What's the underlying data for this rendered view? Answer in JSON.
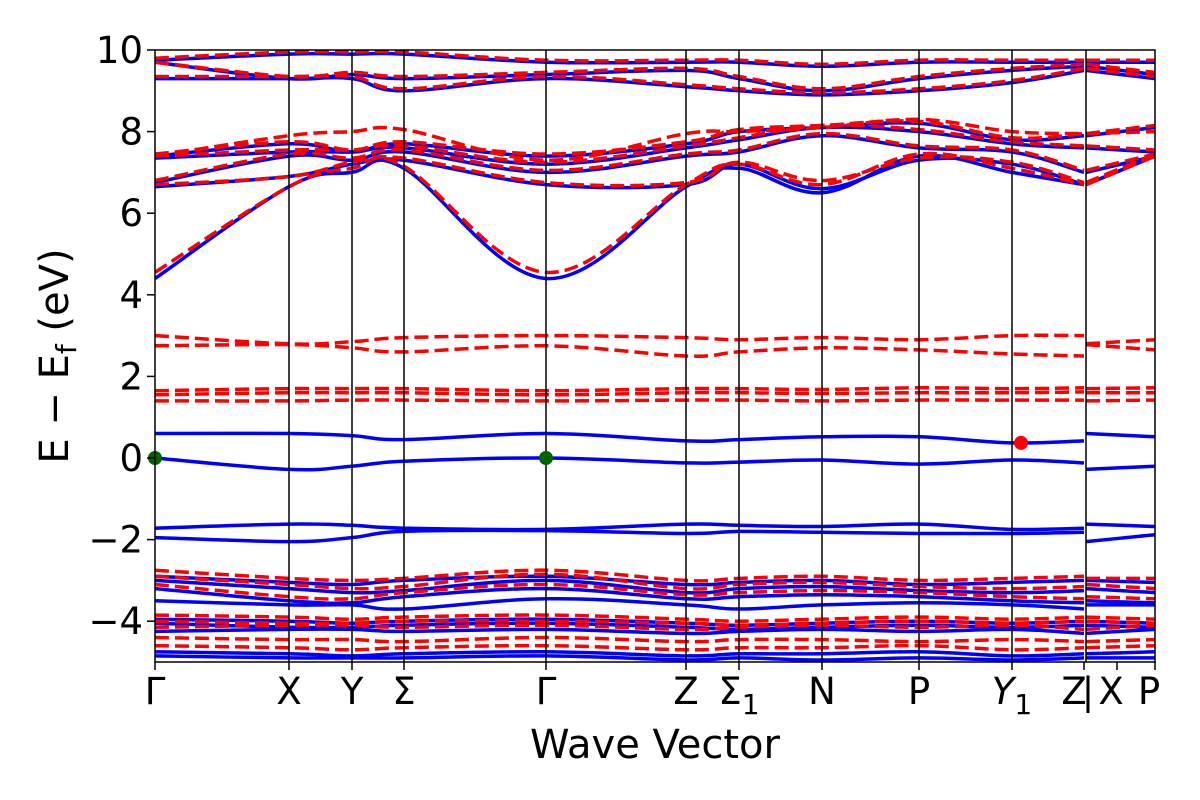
{
  "chart_data": {
    "type": "line",
    "xlabel": "Wave Vector",
    "ylabel": "E − E_f (eV)",
    "ylabel_parts": {
      "main": "E − E",
      "sub": "f",
      "unit": " (eV)"
    },
    "ylim": [
      -5,
      10
    ],
    "yticks": [
      10,
      8,
      6,
      4,
      2,
      0,
      -2,
      -4
    ],
    "ytick_labels": [
      "10",
      "8",
      "6",
      "4",
      "2",
      "0",
      "−2",
      "−4"
    ],
    "x_range": [
      0,
      1
    ],
    "high_symmetry_points": [
      {
        "label": "Γ",
        "x": 0.0
      },
      {
        "label": "X",
        "x": 0.134
      },
      {
        "label": "Y",
        "x": 0.197
      },
      {
        "label": "Σ",
        "x": 0.249
      },
      {
        "label": "Γ",
        "x": 0.391
      },
      {
        "label": "Z",
        "x": 0.531
      },
      {
        "label": "Σ",
        "sub": "1",
        "x": 0.584
      },
      {
        "label": "N",
        "x": 0.667
      },
      {
        "label": "P",
        "x": 0.764
      },
      {
        "label": "Y",
        "sub": "1",
        "italic": true,
        "x": 0.857
      },
      {
        "label": "Z",
        "x": 0.929
      },
      {
        "label": "|",
        "x": 0.931
      },
      {
        "label": "X",
        "x": 0.962
      },
      {
        "label": "P",
        "x": 1.0
      }
    ],
    "vertical_lines_x": [
      0.134,
      0.197,
      0.249,
      0.391,
      0.531,
      0.584,
      0.667,
      0.764,
      0.857,
      0.931
    ],
    "grid": false,
    "legend": "none",
    "colors": {
      "series_a": "#0000ff",
      "series_b": "#ff0000",
      "marker_green": "#006400",
      "marker_red": "#ff0000"
    },
    "knots_x": [
      0.0,
      0.134,
      0.197,
      0.249,
      0.391,
      0.531,
      0.584,
      0.667,
      0.764,
      0.857,
      0.929,
      0.931,
      1.0
    ],
    "series": [
      {
        "style": "solid",
        "color": "#0000ff",
        "bands": [
          [
            4.4,
            6.65,
            7.0,
            7.1,
            4.4,
            6.65,
            7.1,
            6.5,
            7.4,
            7.0,
            6.7,
            6.7,
            7.4
          ],
          [
            6.65,
            6.9,
            7.2,
            7.3,
            6.7,
            6.7,
            7.2,
            6.6,
            7.3,
            7.2,
            6.7,
            6.7,
            7.4
          ],
          [
            6.75,
            7.4,
            7.3,
            7.5,
            7.0,
            7.4,
            7.5,
            7.9,
            7.6,
            7.5,
            7.0,
            7.0,
            7.4
          ],
          [
            7.35,
            7.5,
            7.5,
            7.6,
            7.2,
            7.6,
            7.8,
            8.1,
            8.0,
            7.7,
            7.6,
            7.6,
            7.5
          ],
          [
            7.4,
            7.7,
            7.5,
            7.7,
            7.4,
            7.7,
            8.0,
            8.1,
            8.2,
            7.8,
            7.9,
            7.9,
            8.1
          ],
          [
            9.3,
            9.3,
            9.3,
            9.0,
            9.3,
            9.1,
            9.0,
            8.9,
            9.0,
            9.2,
            9.5,
            9.5,
            9.3
          ],
          [
            9.7,
            9.3,
            9.4,
            9.3,
            9.4,
            9.5,
            9.3,
            9.0,
            9.3,
            9.5,
            9.6,
            9.6,
            9.4
          ],
          [
            9.75,
            9.9,
            9.9,
            9.9,
            9.7,
            9.7,
            9.7,
            9.6,
            9.7,
            9.7,
            9.7,
            9.7,
            9.7
          ],
          [
            0.6,
            0.6,
            0.55,
            0.45,
            0.6,
            0.42,
            0.45,
            0.52,
            0.52,
            0.37,
            0.42,
            0.6,
            0.52
          ],
          [
            0.0,
            -0.28,
            -0.2,
            -0.08,
            0.0,
            -0.12,
            -0.1,
            -0.05,
            -0.15,
            -0.05,
            -0.12,
            -0.28,
            -0.2
          ],
          [
            -1.72,
            -1.62,
            -1.65,
            -1.72,
            -1.75,
            -1.62,
            -1.65,
            -1.68,
            -1.62,
            -1.75,
            -1.72,
            -1.62,
            -1.68
          ],
          [
            -1.95,
            -2.05,
            -1.95,
            -1.8,
            -1.78,
            -1.85,
            -1.8,
            -1.82,
            -1.85,
            -1.85,
            -1.82,
            -2.05,
            -1.88
          ],
          [
            -2.9,
            -3.05,
            -3.1,
            -3.0,
            -2.9,
            -3.1,
            -3.05,
            -3.0,
            -3.1,
            -3.05,
            -3.0,
            -3.0,
            -3.05
          ],
          [
            -3.0,
            -3.2,
            -3.3,
            -3.25,
            -3.0,
            -3.3,
            -3.2,
            -3.15,
            -3.25,
            -3.3,
            -3.25,
            -3.2,
            -3.3
          ],
          [
            -3.2,
            -3.5,
            -3.55,
            -3.4,
            -3.2,
            -3.45,
            -3.4,
            -3.35,
            -3.4,
            -3.5,
            -3.55,
            -3.5,
            -3.55
          ],
          [
            -3.5,
            -3.6,
            -3.6,
            -3.7,
            -3.45,
            -3.6,
            -3.7,
            -3.6,
            -3.55,
            -3.6,
            -3.7,
            -3.6,
            -3.6
          ],
          [
            -3.95,
            -4.0,
            -4.05,
            -4.0,
            -3.95,
            -4.05,
            -4.1,
            -4.05,
            -4.0,
            -4.05,
            -4.0,
            -4.0,
            -4.05
          ],
          [
            -4.05,
            -4.15,
            -4.15,
            -4.1,
            -4.05,
            -4.15,
            -4.2,
            -4.15,
            -4.1,
            -4.15,
            -4.1,
            -4.1,
            -4.15
          ],
          [
            -4.25,
            -4.2,
            -4.2,
            -4.25,
            -4.2,
            -4.3,
            -4.25,
            -4.2,
            -4.25,
            -4.2,
            -4.3,
            -4.3,
            -4.2
          ],
          [
            -4.75,
            -4.8,
            -4.85,
            -4.8,
            -4.75,
            -4.85,
            -4.8,
            -4.8,
            -4.75,
            -4.85,
            -4.8,
            -4.8,
            -4.75
          ],
          [
            -4.85,
            -4.9,
            -4.9,
            -4.9,
            -4.85,
            -4.95,
            -4.9,
            -4.95,
            -4.9,
            -4.95,
            -4.9,
            -4.9,
            -4.9
          ]
        ]
      },
      {
        "style": "dashed",
        "color": "#ff0000",
        "bands": [
          [
            4.55,
            6.65,
            7.1,
            7.15,
            4.55,
            6.7,
            7.2,
            6.7,
            7.45,
            7.1,
            6.7,
            6.7,
            7.4
          ],
          [
            6.7,
            6.9,
            7.25,
            7.35,
            6.75,
            6.75,
            7.25,
            6.8,
            7.35,
            7.25,
            6.75,
            6.75,
            7.45
          ],
          [
            6.8,
            7.45,
            7.35,
            7.55,
            7.05,
            7.45,
            7.55,
            7.95,
            7.65,
            7.55,
            7.05,
            7.05,
            7.45
          ],
          [
            7.4,
            7.55,
            7.55,
            7.65,
            7.25,
            7.65,
            7.85,
            8.15,
            8.05,
            7.75,
            7.65,
            7.65,
            7.55
          ],
          [
            7.45,
            7.75,
            7.55,
            7.75,
            7.45,
            7.75,
            8.05,
            8.15,
            8.25,
            7.85,
            7.95,
            7.95,
            8.15
          ],
          [
            7.4,
            7.9,
            8.0,
            8.05,
            7.3,
            7.95,
            8.0,
            8.1,
            8.3,
            8.0,
            7.95,
            7.95,
            8.0
          ],
          [
            9.35,
            9.35,
            9.35,
            9.05,
            9.35,
            9.15,
            9.05,
            8.95,
            9.05,
            9.25,
            9.55,
            9.55,
            9.35
          ],
          [
            9.7,
            9.35,
            9.45,
            9.35,
            9.45,
            9.55,
            9.35,
            9.05,
            9.35,
            9.55,
            9.65,
            9.65,
            9.45
          ],
          [
            9.8,
            9.95,
            9.95,
            9.95,
            9.75,
            9.75,
            9.75,
            9.65,
            9.75,
            9.75,
            9.75,
            9.75,
            9.75
          ],
          [
            3.0,
            2.8,
            2.85,
            2.95,
            3.0,
            2.95,
            2.9,
            2.95,
            2.9,
            3.0,
            3.0,
            2.8,
            2.9
          ],
          [
            2.75,
            2.78,
            2.7,
            2.6,
            2.75,
            2.5,
            2.6,
            2.7,
            2.65,
            2.55,
            2.5,
            2.78,
            2.65
          ],
          [
            1.65,
            1.7,
            1.7,
            1.7,
            1.65,
            1.7,
            1.7,
            1.68,
            1.72,
            1.7,
            1.72,
            1.7,
            1.72
          ],
          [
            1.55,
            1.6,
            1.6,
            1.6,
            1.55,
            1.6,
            1.6,
            1.58,
            1.6,
            1.6,
            1.62,
            1.6,
            1.6
          ],
          [
            1.4,
            1.4,
            1.42,
            1.42,
            1.4,
            1.42,
            1.42,
            1.4,
            1.42,
            1.42,
            1.42,
            1.4,
            1.42
          ],
          [
            -2.75,
            -2.95,
            -3.0,
            -2.95,
            -2.75,
            -3.0,
            -2.95,
            -2.9,
            -3.0,
            -2.95,
            -2.9,
            -2.95,
            -2.95
          ],
          [
            -2.9,
            -3.1,
            -3.2,
            -3.15,
            -2.85,
            -3.2,
            -3.1,
            -3.05,
            -3.15,
            -3.2,
            -3.15,
            -3.1,
            -3.2
          ],
          [
            -3.1,
            -3.4,
            -3.45,
            -3.3,
            -3.1,
            -3.35,
            -3.3,
            -3.25,
            -3.3,
            -3.4,
            -3.45,
            -3.4,
            -3.45
          ],
          [
            -3.85,
            -3.9,
            -3.95,
            -3.9,
            -3.85,
            -3.95,
            -4.0,
            -3.95,
            -3.9,
            -3.95,
            -3.9,
            -3.9,
            -3.95
          ],
          [
            -4.0,
            -4.05,
            -4.05,
            -4.0,
            -4.0,
            -4.05,
            -4.1,
            -4.05,
            -4.0,
            -4.05,
            -4.0,
            -4.0,
            -4.05
          ],
          [
            -4.15,
            -4.1,
            -4.1,
            -4.15,
            -4.1,
            -4.2,
            -4.15,
            -4.1,
            -4.15,
            -4.1,
            -4.2,
            -4.2,
            -4.1
          ],
          [
            -4.4,
            -4.45,
            -4.45,
            -4.5,
            -4.4,
            -4.5,
            -4.45,
            -4.45,
            -4.5,
            -4.45,
            -4.5,
            -4.5,
            -4.45
          ],
          [
            -4.6,
            -4.65,
            -4.7,
            -4.65,
            -4.6,
            -4.7,
            -4.65,
            -4.65,
            -4.6,
            -4.7,
            -4.65,
            -4.65,
            -4.6
          ]
        ]
      }
    ],
    "markers": [
      {
        "x": 0.0,
        "y": 0.0,
        "color": "#006400"
      },
      {
        "x": 0.391,
        "y": 0.0,
        "color": "#006400"
      },
      {
        "x": 0.866,
        "y": 0.37,
        "color": "#ff0000"
      }
    ]
  }
}
